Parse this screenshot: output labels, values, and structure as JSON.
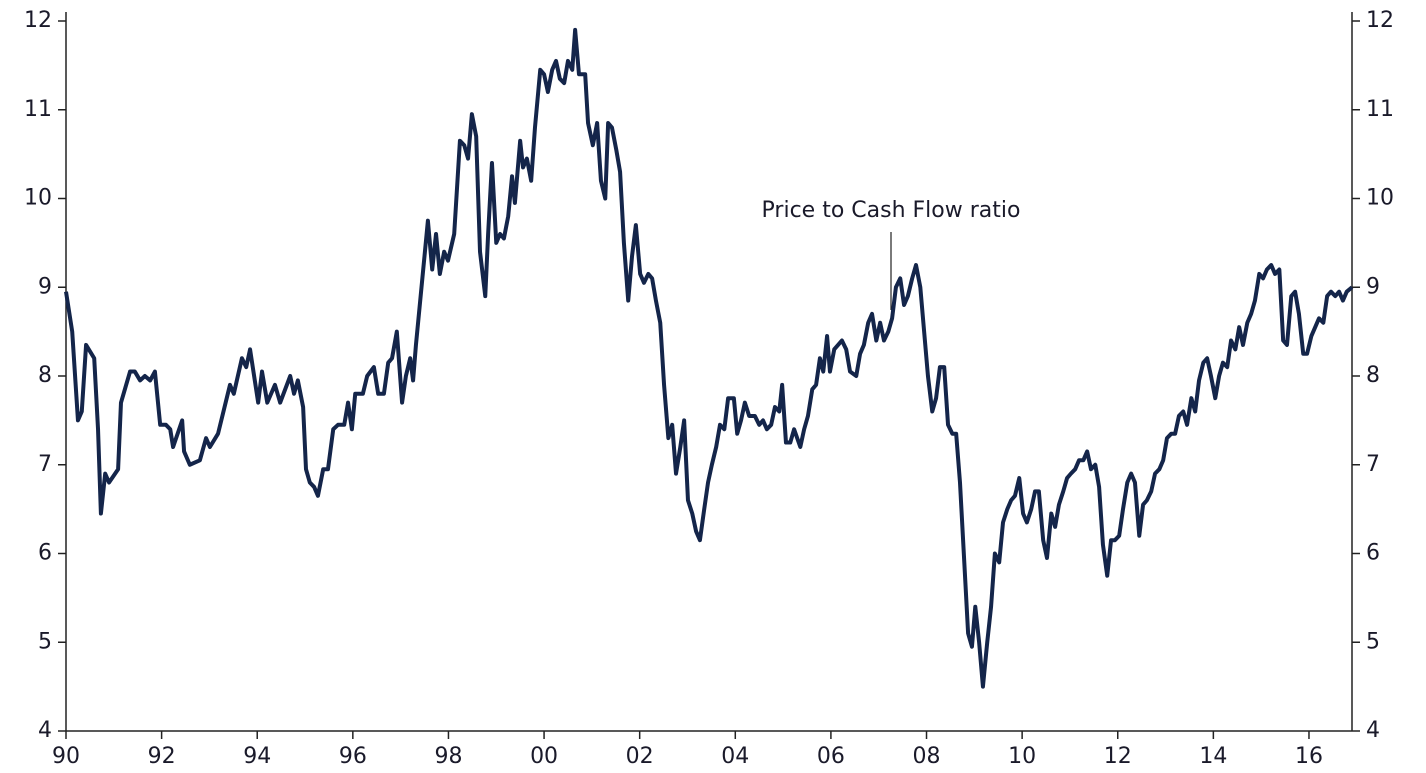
{
  "chart_data": {
    "type": "line",
    "annotation": "Price to Cash Flow ratio",
    "color": "#14254a",
    "xlim": [
      1990,
      2016.9
    ],
    "xticks": [
      {
        "value": 1990,
        "label": "90"
      },
      {
        "value": 1992,
        "label": "92"
      },
      {
        "value": 1994,
        "label": "94"
      },
      {
        "value": 1996,
        "label": "96"
      },
      {
        "value": 1998,
        "label": "98"
      },
      {
        "value": 2000,
        "label": "00"
      },
      {
        "value": 2002,
        "label": "02"
      },
      {
        "value": 2004,
        "label": "04"
      },
      {
        "value": 2006,
        "label": "06"
      },
      {
        "value": 2008,
        "label": "08"
      },
      {
        "value": 2010,
        "label": "10"
      },
      {
        "value": 2012,
        "label": "12"
      },
      {
        "value": 2014,
        "label": "14"
      },
      {
        "value": 2016,
        "label": "16"
      }
    ],
    "ylim": [
      4,
      12
    ],
    "yticks": [
      4,
      5,
      6,
      7,
      8,
      9,
      10,
      11,
      12
    ],
    "grid": false,
    "x": [
      1990.0,
      1990.13,
      1990.25,
      1990.33,
      1990.42,
      1990.59,
      1990.67,
      1990.73,
      1990.82,
      1990.9,
      1991.09,
      1991.15,
      1991.34,
      1991.44,
      1991.55,
      1991.65,
      1991.76,
      1991.86,
      1991.97,
      1992.09,
      1992.18,
      1992.24,
      1992.43,
      1992.47,
      1992.59,
      1992.8,
      1992.93,
      1993.01,
      1993.18,
      1993.43,
      1993.51,
      1993.68,
      1993.77,
      1993.85,
      1994.02,
      1994.1,
      1994.21,
      1994.37,
      1994.48,
      1994.69,
      1994.77,
      1994.85,
      1994.96,
      1995.02,
      1995.1,
      1995.19,
      1995.27,
      1995.38,
      1995.48,
      1995.59,
      1995.69,
      1995.82,
      1995.9,
      1995.98,
      1996.05,
      1996.21,
      1996.3,
      1996.44,
      1996.53,
      1996.65,
      1996.74,
      1996.82,
      1996.92,
      1997.03,
      1997.11,
      1997.2,
      1997.26,
      1997.32,
      1997.49,
      1997.57,
      1997.66,
      1997.74,
      1997.82,
      1997.91,
      1997.99,
      1998.12,
      1998.24,
      1998.33,
      1998.41,
      1998.49,
      1998.58,
      1998.66,
      1998.77,
      1998.83,
      1998.91,
      1999.0,
      1999.08,
      1999.16,
      1999.25,
      1999.33,
      1999.39,
      1999.5,
      1999.56,
      1999.64,
      1999.73,
      1999.81,
      1999.92,
      2000.0,
      2000.08,
      2000.17,
      2000.25,
      2000.33,
      2000.42,
      2000.5,
      2000.59,
      2000.65,
      2000.73,
      2000.86,
      2000.92,
      2001.02,
      2001.11,
      2001.19,
      2001.28,
      2001.34,
      2001.42,
      2001.51,
      2001.59,
      2001.67,
      2001.76,
      2001.84,
      2001.92,
      2002.01,
      2002.09,
      2002.18,
      2002.26,
      2002.34,
      2002.43,
      2002.51,
      2002.6,
      2002.68,
      2002.76,
      2002.85,
      2002.93,
      2003.01,
      2003.1,
      2003.18,
      2003.26,
      2003.35,
      2003.43,
      2003.51,
      2003.6,
      2003.68,
      2003.77,
      2003.85,
      2003.97,
      2004.04,
      2004.12,
      2004.2,
      2004.29,
      2004.41,
      2004.5,
      2004.58,
      2004.66,
      2004.75,
      2004.83,
      2004.92,
      2004.98,
      2005.06,
      2005.15,
      2005.23,
      2005.36,
      2005.44,
      2005.52,
      2005.61,
      2005.69,
      2005.77,
      2005.84,
      2005.92,
      2005.98,
      2006.07,
      2006.15,
      2006.23,
      2006.32,
      2006.4,
      2006.53,
      2006.61,
      2006.69,
      2006.78,
      2006.86,
      2006.95,
      2007.03,
      2007.11,
      2007.2,
      2007.28,
      2007.36,
      2007.45,
      2007.53,
      2007.61,
      2007.7,
      2007.78,
      2007.87,
      2007.95,
      2008.03,
      2008.12,
      2008.2,
      2008.28,
      2008.37,
      2008.45,
      2008.54,
      2008.62,
      2008.7,
      2008.79,
      2008.87,
      2008.95,
      2009.02,
      2009.1,
      2009.18,
      2009.27,
      2009.35,
      2009.43,
      2009.52,
      2009.6,
      2009.69,
      2009.77,
      2009.85,
      2009.94,
      2010.02,
      2010.1,
      2010.19,
      2010.27,
      2010.35,
      2010.44,
      2010.52,
      2010.61,
      2010.69,
      2010.77,
      2010.86,
      2010.94,
      2011.02,
      2011.11,
      2011.19,
      2011.28,
      2011.36,
      2011.44,
      2011.53,
      2011.61,
      2011.69,
      2011.78,
      2011.86,
      2011.94,
      2012.03,
      2012.11,
      2012.2,
      2012.28,
      2012.36,
      2012.45,
      2012.53,
      2012.61,
      2012.7,
      2012.78,
      2012.87,
      2012.95,
      2013.03,
      2013.12,
      2013.2,
      2013.28,
      2013.37,
      2013.45,
      2013.54,
      2013.62,
      2013.7,
      2013.79,
      2013.87,
      2013.95,
      2014.04,
      2014.12,
      2014.2,
      2014.29,
      2014.37,
      2014.46,
      2014.54,
      2014.62,
      2014.71,
      2014.79,
      2014.87,
      2014.96,
      2015.04,
      2015.12,
      2015.21,
      2015.29,
      2015.38,
      2015.46,
      2015.54,
      2015.63,
      2015.71,
      2015.79,
      2015.88,
      2015.96,
      2016.05,
      2016.13,
      2016.21,
      2016.3,
      2016.38,
      2016.46,
      2016.55,
      2016.63,
      2016.71,
      2016.79,
      2016.9
    ],
    "values": [
      8.95,
      8.5,
      7.5,
      7.6,
      8.35,
      8.2,
      7.4,
      6.45,
      6.9,
      6.8,
      6.95,
      7.7,
      8.05,
      8.05,
      7.95,
      8.0,
      7.95,
      8.05,
      7.45,
      7.45,
      7.4,
      7.2,
      7.5,
      7.15,
      7.0,
      7.05,
      7.3,
      7.2,
      7.35,
      7.9,
      7.8,
      8.2,
      8.1,
      8.3,
      7.7,
      8.05,
      7.7,
      7.9,
      7.7,
      8.0,
      7.8,
      7.95,
      7.65,
      6.95,
      6.8,
      6.75,
      6.65,
      6.95,
      6.95,
      7.4,
      7.45,
      7.45,
      7.7,
      7.4,
      7.8,
      7.8,
      8.0,
      8.1,
      7.8,
      7.8,
      8.15,
      8.2,
      8.5,
      7.7,
      8.0,
      8.2,
      7.95,
      8.35,
      9.3,
      9.75,
      9.2,
      9.6,
      9.15,
      9.4,
      9.3,
      9.6,
      10.65,
      10.6,
      10.45,
      10.95,
      10.7,
      9.4,
      8.9,
      9.6,
      10.4,
      9.5,
      9.6,
      9.55,
      9.8,
      10.25,
      9.95,
      10.65,
      10.35,
      10.45,
      10.2,
      10.8,
      11.45,
      11.4,
      11.2,
      11.45,
      11.55,
      11.35,
      11.3,
      11.55,
      11.45,
      11.9,
      11.4,
      11.4,
      10.85,
      10.6,
      10.85,
      10.2,
      10.0,
      10.85,
      10.8,
      10.55,
      10.3,
      9.5,
      8.85,
      9.35,
      9.7,
      9.15,
      9.05,
      9.15,
      9.1,
      8.85,
      8.6,
      7.9,
      7.3,
      7.45,
      6.9,
      7.2,
      7.5,
      6.6,
      6.45,
      6.25,
      6.15,
      6.5,
      6.8,
      7.0,
      7.2,
      7.45,
      7.4,
      7.75,
      7.75,
      7.35,
      7.5,
      7.7,
      7.55,
      7.55,
      7.45,
      7.5,
      7.4,
      7.45,
      7.65,
      7.6,
      7.9,
      7.25,
      7.25,
      7.4,
      7.2,
      7.4,
      7.55,
      7.85,
      7.9,
      8.2,
      8.05,
      8.45,
      8.05,
      8.3,
      8.35,
      8.4,
      8.3,
      8.05,
      8.0,
      8.25,
      8.35,
      8.6,
      8.7,
      8.4,
      8.6,
      8.4,
      8.5,
      8.65,
      9.0,
      9.1,
      8.8,
      8.9,
      9.1,
      9.25,
      9.0,
      8.5,
      8.0,
      7.6,
      7.75,
      8.1,
      8.1,
      7.45,
      7.35,
      7.35,
      6.8,
      5.9,
      5.1,
      4.95,
      5.4,
      5.0,
      4.5,
      5.0,
      5.4,
      6.0,
      5.9,
      6.35,
      6.5,
      6.6,
      6.65,
      6.85,
      6.45,
      6.35,
      6.5,
      6.7,
      6.7,
      6.15,
      5.95,
      6.45,
      6.3,
      6.55,
      6.7,
      6.85,
      6.9,
      6.95,
      7.05,
      7.05,
      7.15,
      6.95,
      7.0,
      6.75,
      6.1,
      5.75,
      6.15,
      6.15,
      6.2,
      6.5,
      6.8,
      6.9,
      6.8,
      6.2,
      6.55,
      6.6,
      6.7,
      6.9,
      6.95,
      7.05,
      7.3,
      7.35,
      7.35,
      7.55,
      7.6,
      7.45,
      7.75,
      7.6,
      7.95,
      8.15,
      8.2,
      8.0,
      7.75,
      8.0,
      8.15,
      8.1,
      8.4,
      8.3,
      8.55,
      8.35,
      8.6,
      8.7,
      8.85,
      9.15,
      9.1,
      9.2,
      9.25,
      9.15,
      9.2,
      8.4,
      8.35,
      8.9,
      8.95,
      8.7,
      8.25,
      8.25,
      8.45,
      8.55,
      8.65,
      8.6,
      8.9,
      8.95,
      8.9,
      8.95,
      8.85,
      8.95,
      9.0
    ]
  }
}
